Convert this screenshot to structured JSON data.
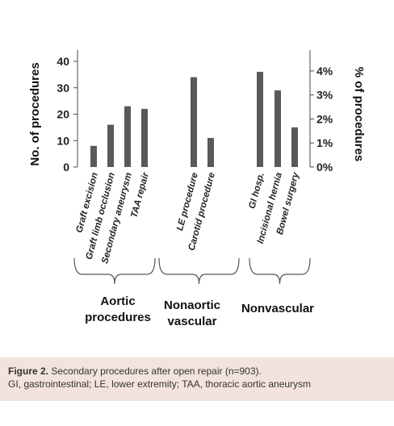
{
  "chart_data": {
    "type": "bar",
    "categories": [
      "Graft excision",
      "Graft limb occlusion",
      "Secondary aneurysm",
      "TAA repair",
      "LE procedure",
      "Carotid procedure",
      "GI hosp.",
      "Incisional hernia",
      "Bowel surgery"
    ],
    "values": [
      8,
      16,
      23,
      22,
      34,
      11,
      36,
      29,
      15
    ],
    "ylabel": "No. of procedures",
    "y2label": "% of procedures",
    "ylim": [
      0,
      40
    ],
    "y2lim": [
      0,
      4.4
    ],
    "yticks": [
      "0",
      "10",
      "20",
      "30",
      "40"
    ],
    "y2ticks": [
      "0%",
      "1%",
      "2%",
      "3%",
      "4%"
    ],
    "groups": [
      {
        "label_lines": [
          "Aortic",
          "procedures"
        ],
        "count": 4
      },
      {
        "label_lines": [
          "Nonaortic",
          "vascular"
        ],
        "count": 2
      },
      {
        "label_lines": [
          "Nonvascular"
        ],
        "count": 3
      }
    ],
    "bar_color": "#595959"
  },
  "caption": {
    "figure_number": "Figure 2.",
    "line1": "Secondary procedures after open repair (n=903).",
    "line2": "GI, gastrointestinal; LE, lower extremity; TAA, thoracic aortic aneurysm"
  }
}
